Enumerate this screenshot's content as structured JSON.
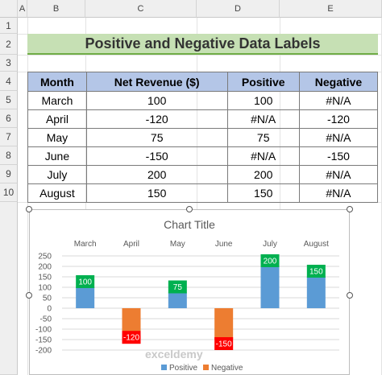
{
  "spreadsheet": {
    "columns": [
      "A",
      "B",
      "C",
      "D",
      "E"
    ],
    "rows": [
      "1",
      "2",
      "3",
      "4",
      "5",
      "6",
      "7",
      "8",
      "9",
      "10"
    ]
  },
  "title": "Positive and Negative Data Labels",
  "table": {
    "headers": [
      "Month",
      "Net Revenue ($)",
      "Positive",
      "Negative"
    ],
    "rows": [
      [
        "March",
        "100",
        "100",
        "#N/A"
      ],
      [
        "April",
        "-120",
        "#N/A",
        "-120"
      ],
      [
        "May",
        "75",
        "75",
        "#N/A"
      ],
      [
        "June",
        "-150",
        "#N/A",
        "-150"
      ],
      [
        "July",
        "200",
        "200",
        "#N/A"
      ],
      [
        "August",
        "150",
        "150",
        "#N/A"
      ]
    ]
  },
  "chart_data": {
    "type": "bar",
    "title": "Chart Title",
    "categories": [
      "March",
      "April",
      "May",
      "June",
      "July",
      "August"
    ],
    "series": [
      {
        "name": "Positive",
        "values": [
          100,
          null,
          75,
          null,
          200,
          150
        ],
        "color": "#5b9bd5",
        "label_bg": "#00b050"
      },
      {
        "name": "Negative",
        "values": [
          null,
          -120,
          null,
          -150,
          null,
          null
        ],
        "color": "#ed7d31",
        "label_bg": "#ff0000"
      }
    ],
    "data_labels": [
      "100",
      "-120",
      "75",
      "-150",
      "200",
      "150"
    ],
    "ylim": [
      -200,
      250
    ],
    "yticks": [
      250,
      200,
      150,
      100,
      50,
      0,
      -50,
      -100,
      -150,
      -200
    ],
    "ytick_labels": [
      "250",
      "200",
      "150",
      "100",
      "50",
      "0",
      "-50",
      "-100",
      "-150",
      "-200"
    ],
    "grid": true,
    "legend": "bottom"
  },
  "watermark": "exceldemy"
}
